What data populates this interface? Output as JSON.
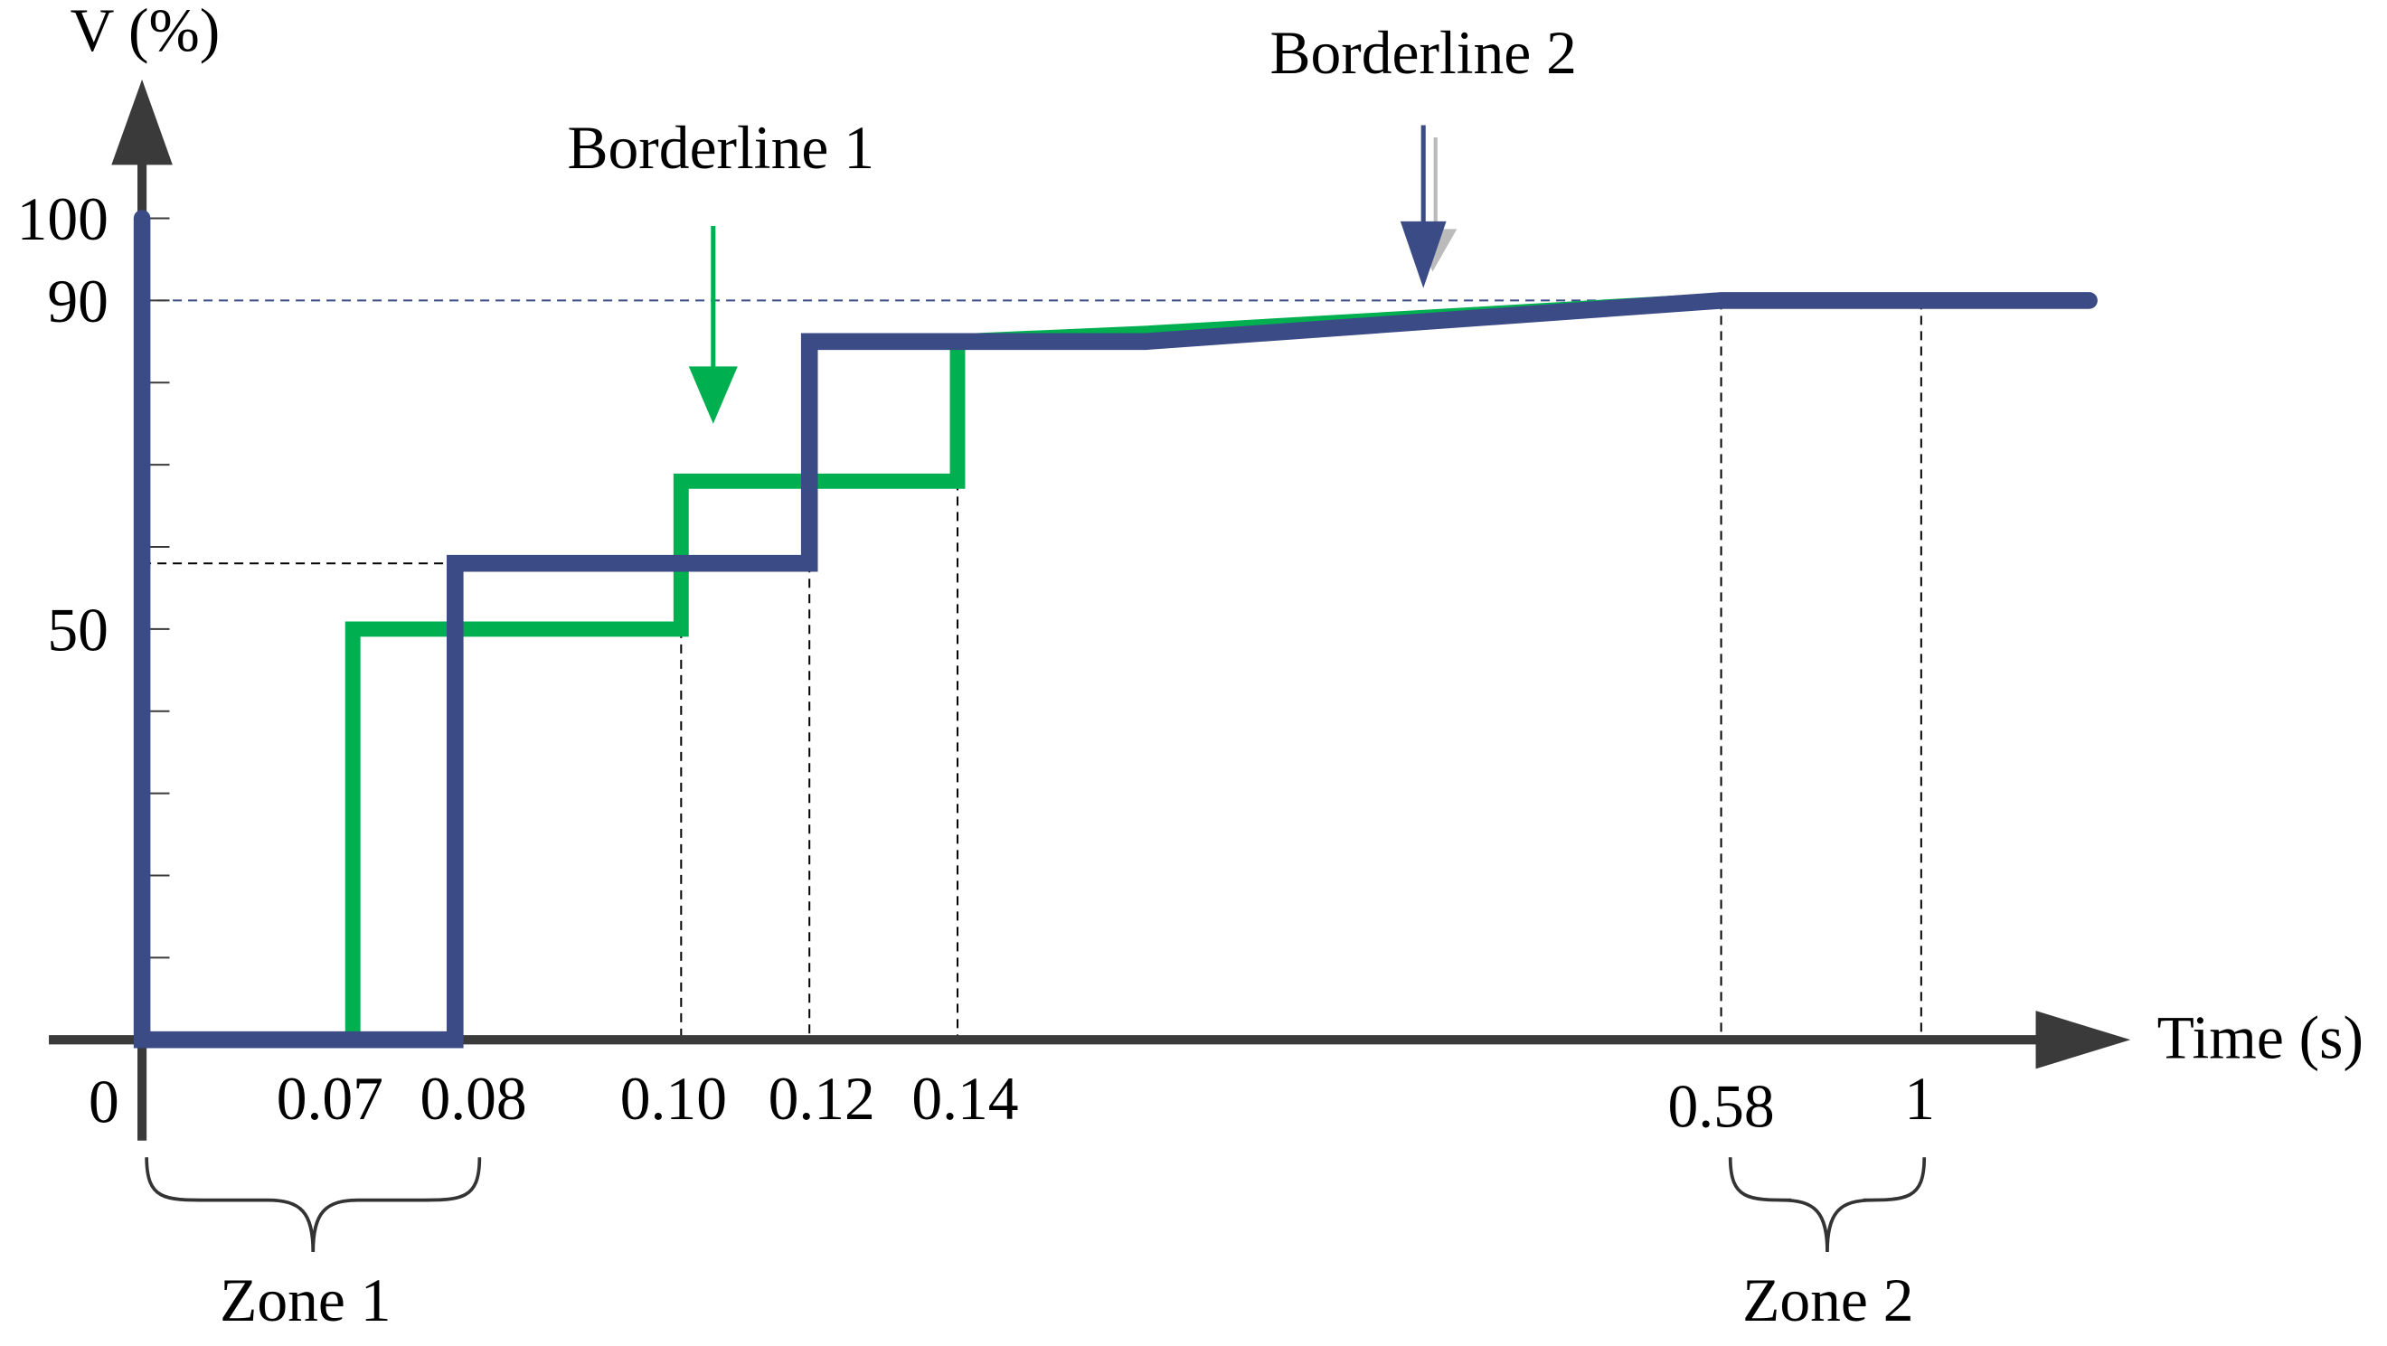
{
  "chart_data": {
    "type": "line",
    "title": "",
    "ylabel": "V (%)",
    "xlabel": "Time (s)",
    "y_tick_labels": [
      "100",
      "90",
      "50"
    ],
    "y_tick_values": [
      100,
      90,
      50
    ],
    "y_minor_ticks": [
      10,
      20,
      30,
      40,
      50,
      60,
      70,
      80,
      90,
      100
    ],
    "x_tick_labels": [
      "0",
      "0.07",
      "0.08",
      "0.10",
      "0.12",
      "0.14",
      "0.58",
      "1"
    ],
    "x_tick_values": [
      0,
      0.07,
      0.08,
      0.1,
      0.12,
      0.14,
      0.58,
      1
    ],
    "ylim": [
      0,
      100
    ],
    "grid": false,
    "legend": "none",
    "series": [
      {
        "color": "#00B050",
        "points": [
          [
            0.07,
            0
          ],
          [
            0.07,
            50
          ],
          [
            0.1,
            50
          ],
          [
            0.1,
            68
          ],
          [
            0.12,
            68
          ],
          [
            0.14,
            68
          ],
          [
            0.14,
            85
          ],
          [
            0.3,
            86
          ],
          [
            0.58,
            90
          ],
          [
            1.05,
            90
          ]
        ]
      },
      {
        "color": "#3A4B86",
        "points": [
          [
            0,
            100
          ],
          [
            0,
            0
          ],
          [
            0.08,
            0
          ],
          [
            0.08,
            58
          ],
          [
            0.12,
            58
          ],
          [
            0.12,
            85
          ],
          [
            0.3,
            85
          ],
          [
            0.58,
            90
          ],
          [
            1.05,
            90
          ]
        ]
      }
    ],
    "reference_lines": [
      {
        "orientation": "horizontal",
        "y": 90,
        "x_from": 0,
        "x_to": 0.58,
        "color": "#3A4B86"
      },
      {
        "orientation": "horizontal",
        "y": 58,
        "x_from": 0,
        "x_to": 0.08,
        "color": "#000000"
      },
      {
        "orientation": "vertical",
        "x": 0.1,
        "y_to": 50,
        "color": "#000000"
      },
      {
        "orientation": "vertical",
        "x": 0.12,
        "y_to": 58,
        "color": "#000000"
      },
      {
        "orientation": "vertical",
        "x": 0.14,
        "y_to": 68,
        "color": "#000000"
      },
      {
        "orientation": "vertical",
        "x": 0.58,
        "y_to": 90,
        "color": "#000000"
      },
      {
        "orientation": "vertical",
        "x": 1,
        "y_to": 90,
        "color": "#000000"
      }
    ],
    "annotations": [
      {
        "text": "Borderline 1",
        "color": "#00B050",
        "arrow_at_x": 0.105,
        "arrow_tip_y": 75
      },
      {
        "text": "Borderline 2",
        "color": "#3A4B86",
        "arrow_at_x": 0.4,
        "arrow_tip_y": 91.5
      }
    ],
    "zones": [
      {
        "label": "Zone 1",
        "from": 0,
        "to": 0.08
      },
      {
        "label": "Zone 2",
        "from": 0.58,
        "to": 1
      }
    ]
  }
}
